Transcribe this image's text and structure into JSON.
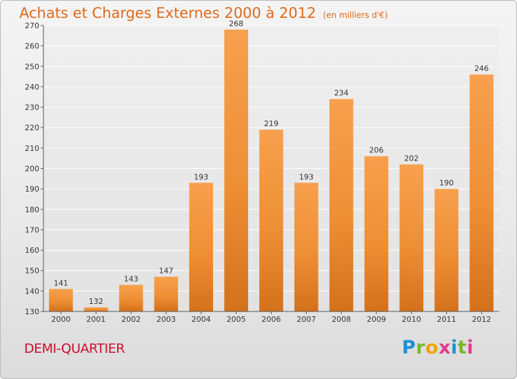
{
  "chart_data": {
    "type": "bar",
    "title": "Achats et Charges Externes 2000 à 2012",
    "unit": "(en milliers d'€)",
    "categories": [
      "2000",
      "2001",
      "2002",
      "2003",
      "2004",
      "2005",
      "2006",
      "2007",
      "2008",
      "2009",
      "2010",
      "2011",
      "2012"
    ],
    "values": [
      141,
      132,
      143,
      147,
      193,
      268,
      219,
      193,
      234,
      206,
      202,
      190,
      246
    ],
    "ylim": [
      130,
      270
    ],
    "yticks": [
      130,
      140,
      150,
      160,
      170,
      180,
      190,
      200,
      210,
      220,
      230,
      240,
      250,
      260,
      270
    ],
    "grid": true,
    "bar_color": "#f0913a"
  },
  "footer": {
    "location": "DEMI-QUARTIER"
  },
  "logo": {
    "text": "Proxiti"
  }
}
